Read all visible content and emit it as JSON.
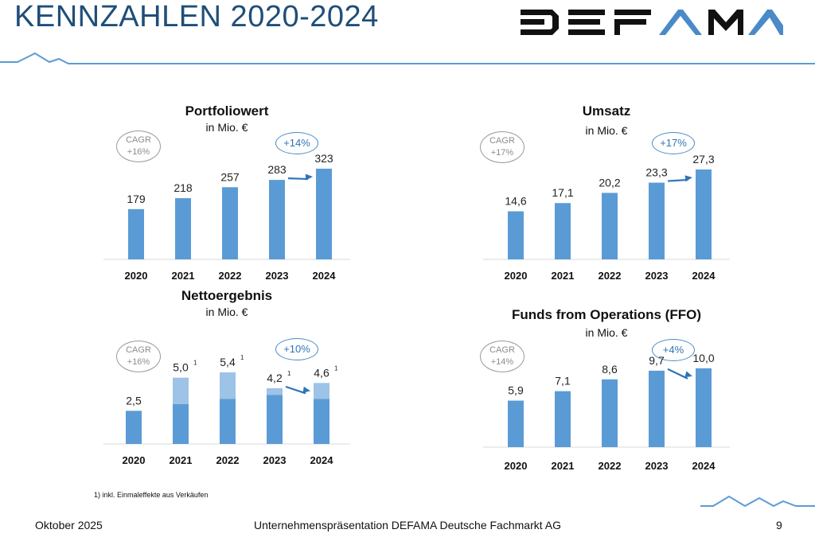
{
  "header": {
    "title": "KENNZAHLEN 2020-2024",
    "logo_text": "DEFAMA"
  },
  "colors": {
    "title": "#1f4e79",
    "bar": "#5b9bd5",
    "bar_oneoff": "#9dc3e6",
    "bar_base": "#5b9bd5",
    "accent": "#2e75b6",
    "cagr": "#9a9a9a"
  },
  "footnote": "1) inkl. Einmaleffekte aus Verkäufen",
  "footer": {
    "date": "Oktober 2025",
    "center": "Unternehmenspräsentation DEFAMA Deutsche Fachmarkt AG",
    "page": "9"
  },
  "charts": [
    {
      "title": "Portfoliowert",
      "unit": "in Mio. €",
      "cagr_label": "CAGR",
      "cagr_value": "+16%",
      "growth": "+14%"
    },
    {
      "title": "Umsatz",
      "unit": "in Mio. €",
      "cagr_label": "CAGR",
      "cagr_value": "+17%",
      "growth": "+17%"
    },
    {
      "title": "Nettoergebnis",
      "unit": "in Mio. €",
      "cagr_label": "CAGR",
      "cagr_value": "+16%",
      "growth": "+10%"
    },
    {
      "title": "Funds from Operations (FFO)",
      "unit": "in Mio. €",
      "cagr_label": "CAGR",
      "cagr_value": "+14%",
      "growth": "+4%"
    }
  ],
  "chart_data": [
    {
      "type": "bar",
      "title": "Portfoliowert",
      "subtitle": "in Mio. €",
      "categories": [
        "2020",
        "2021",
        "2022",
        "2023",
        "2024"
      ],
      "values": [
        179,
        218,
        257,
        283,
        323
      ],
      "labels": [
        "179",
        "218",
        "257",
        "283",
        "323"
      ],
      "ylim": [
        0,
        340
      ],
      "grid": false
    },
    {
      "type": "bar",
      "title": "Umsatz",
      "subtitle": "in Mio. €",
      "categories": [
        "2020",
        "2021",
        "2022",
        "2023",
        "2024"
      ],
      "values": [
        14.6,
        17.1,
        20.2,
        23.3,
        27.3
      ],
      "labels": [
        "14,6",
        "17,1",
        "20,2",
        "23,3",
        "27,3"
      ],
      "ylim": [
        0,
        29
      ],
      "grid": false
    },
    {
      "type": "bar",
      "title": "Nettoergebnis",
      "subtitle": "in Mio. €",
      "categories": [
        "2020",
        "2021",
        "2022",
        "2023",
        "2024"
      ],
      "values": [
        2.5,
        5.0,
        5.4,
        4.2,
        4.6
      ],
      "labels": [
        "2,5",
        "5,0",
        "5,4",
        "4,2",
        "4,6"
      ],
      "base_values": [
        2.5,
        3.0,
        3.4,
        3.7,
        3.4
      ],
      "footnote_marks": [
        "",
        "1",
        "1",
        "1",
        "1"
      ],
      "ylim": [
        0,
        6.0
      ],
      "grid": false
    },
    {
      "type": "bar",
      "title": "Funds from Operations (FFO)",
      "subtitle": "in Mio. €",
      "categories": [
        "2020",
        "2021",
        "2022",
        "2023",
        "2024"
      ],
      "values": [
        5.9,
        7.1,
        8.6,
        9.7,
        10.0
      ],
      "labels": [
        "5,9",
        "7,1",
        "8,6",
        "9,7",
        "10,0"
      ],
      "ylim": [
        0,
        10.9
      ],
      "grid": false
    }
  ]
}
